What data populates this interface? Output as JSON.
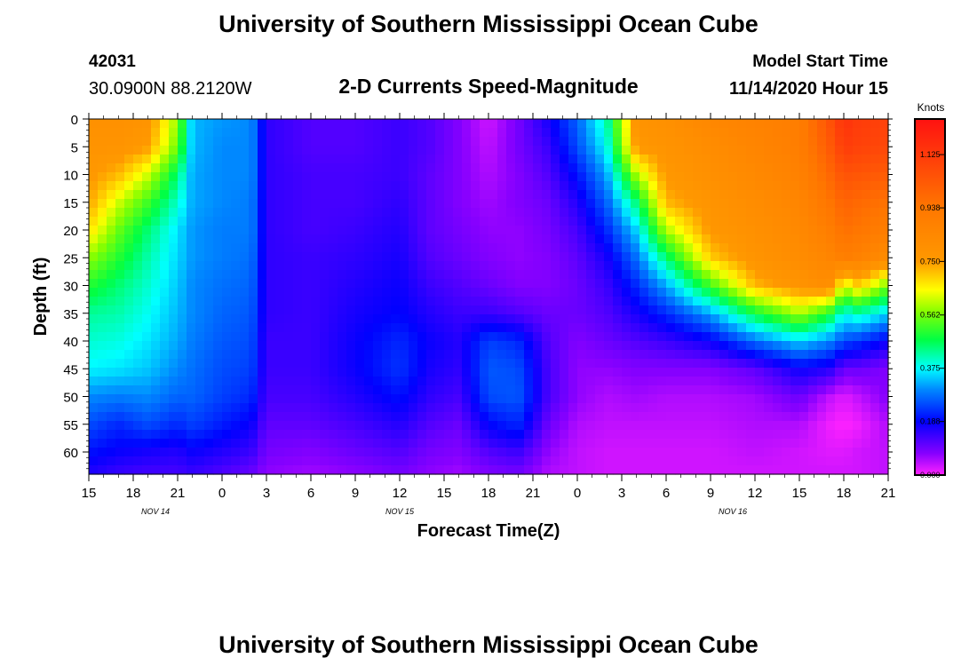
{
  "chart_data": {
    "type": "heatmap",
    "title": "University of Southern Mississippi Ocean Cube",
    "footer_title": "University of Southern Mississippi Ocean Cube",
    "subtitle": "2-D Currents Speed-Magnitude",
    "station_id": "42031",
    "station_position": "30.0900N 88.2120W",
    "model_start_label": "Model Start Time",
    "model_start_value": "11/14/2020 Hour 15",
    "xlabel": "Forecast Time(Z)",
    "ylabel": "Depth (ft)",
    "x_range_hours": [
      0,
      54
    ],
    "y_range_ft": [
      0,
      64
    ],
    "x_ticks": [
      {
        "hour": 0,
        "label": "15"
      },
      {
        "hour": 3,
        "label": "18"
      },
      {
        "hour": 6,
        "label": "21"
      },
      {
        "hour": 9,
        "label": "0"
      },
      {
        "hour": 12,
        "label": "3"
      },
      {
        "hour": 15,
        "label": "6"
      },
      {
        "hour": 18,
        "label": "9"
      },
      {
        "hour": 21,
        "label": "12"
      },
      {
        "hour": 24,
        "label": "15"
      },
      {
        "hour": 27,
        "label": "18"
      },
      {
        "hour": 30,
        "label": "21"
      },
      {
        "hour": 33,
        "label": "0"
      },
      {
        "hour": 36,
        "label": "3"
      },
      {
        "hour": 39,
        "label": "6"
      },
      {
        "hour": 42,
        "label": "9"
      },
      {
        "hour": 45,
        "label": "12"
      },
      {
        "hour": 48,
        "label": "15"
      },
      {
        "hour": 51,
        "label": "18"
      },
      {
        "hour": 54,
        "label": "21"
      }
    ],
    "date_labels": [
      {
        "hour": 4.5,
        "label": "NOV 14"
      },
      {
        "hour": 21,
        "label": "NOV 15"
      },
      {
        "hour": 43.5,
        "label": "NOV 16"
      }
    ],
    "y_ticks": [
      "0",
      "5",
      "10",
      "15",
      "20",
      "25",
      "30",
      "35",
      "40",
      "45",
      "50",
      "55",
      "60"
    ],
    "y_tick_values": [
      0,
      5,
      10,
      15,
      20,
      25,
      30,
      35,
      40,
      45,
      50,
      55,
      60
    ],
    "colorbar": {
      "unit": "Knots",
      "min": 0.0,
      "max": 1.25,
      "ticks": [
        "1.125",
        "0.938",
        "0.750",
        "0.562",
        "0.375",
        "0.188",
        "0.000"
      ],
      "tick_values": [
        1.125,
        0.938,
        0.75,
        0.562,
        0.375,
        0.188,
        0.0
      ]
    },
    "depths_ft": [
      0,
      5,
      10,
      15,
      20,
      25,
      30,
      35,
      40,
      45,
      50,
      55,
      60,
      64
    ],
    "hours": [
      0,
      2,
      4,
      6,
      7,
      9,
      11,
      12,
      15,
      18,
      21,
      23,
      25,
      27,
      29,
      31,
      33,
      35,
      37,
      39,
      42,
      45,
      48,
      50,
      51,
      52,
      54
    ],
    "speed_knots": [
      [
        0.8,
        0.8,
        0.78,
        0.58,
        0.33,
        0.31,
        0.3,
        0.15,
        0.12,
        0.12,
        0.14,
        0.12,
        0.08,
        0.03,
        0.09,
        0.17,
        0.27,
        0.42,
        0.78,
        0.8,
        0.85,
        0.88,
        0.9,
        1.05,
        1.15,
        1.12,
        1.1
      ],
      [
        0.78,
        0.78,
        0.75,
        0.55,
        0.33,
        0.3,
        0.3,
        0.15,
        0.12,
        0.12,
        0.14,
        0.12,
        0.08,
        0.04,
        0.09,
        0.14,
        0.25,
        0.38,
        0.76,
        0.78,
        0.82,
        0.86,
        0.9,
        1.02,
        1.12,
        1.1,
        1.08
      ],
      [
        0.76,
        0.72,
        0.62,
        0.45,
        0.32,
        0.3,
        0.3,
        0.15,
        0.13,
        0.13,
        0.14,
        0.11,
        0.08,
        0.05,
        0.08,
        0.12,
        0.2,
        0.32,
        0.6,
        0.76,
        0.8,
        0.84,
        0.88,
        0.98,
        1.05,
        1.04,
        1.02
      ],
      [
        0.74,
        0.62,
        0.52,
        0.4,
        0.32,
        0.3,
        0.29,
        0.15,
        0.13,
        0.13,
        0.15,
        0.11,
        0.08,
        0.06,
        0.08,
        0.1,
        0.16,
        0.27,
        0.45,
        0.72,
        0.78,
        0.82,
        0.86,
        0.94,
        1.0,
        0.98,
        0.95
      ],
      [
        0.68,
        0.55,
        0.45,
        0.36,
        0.31,
        0.29,
        0.29,
        0.15,
        0.13,
        0.14,
        0.16,
        0.11,
        0.09,
        0.07,
        0.07,
        0.09,
        0.13,
        0.22,
        0.35,
        0.6,
        0.76,
        0.8,
        0.84,
        0.9,
        0.96,
        0.94,
        0.9
      ],
      [
        0.58,
        0.5,
        0.42,
        0.35,
        0.31,
        0.29,
        0.28,
        0.15,
        0.14,
        0.15,
        0.17,
        0.12,
        0.1,
        0.08,
        0.07,
        0.08,
        0.11,
        0.17,
        0.28,
        0.45,
        0.7,
        0.78,
        0.82,
        0.86,
        0.9,
        0.88,
        0.82
      ],
      [
        0.5,
        0.45,
        0.4,
        0.34,
        0.3,
        0.28,
        0.27,
        0.15,
        0.14,
        0.16,
        0.18,
        0.14,
        0.12,
        0.1,
        0.08,
        0.08,
        0.1,
        0.14,
        0.22,
        0.32,
        0.52,
        0.72,
        0.78,
        0.82,
        0.62,
        0.7,
        0.56
      ],
      [
        0.43,
        0.42,
        0.38,
        0.33,
        0.3,
        0.27,
        0.26,
        0.15,
        0.14,
        0.17,
        0.19,
        0.16,
        0.14,
        0.14,
        0.12,
        0.1,
        0.1,
        0.12,
        0.17,
        0.22,
        0.32,
        0.48,
        0.6,
        0.5,
        0.38,
        0.42,
        0.35
      ],
      [
        0.4,
        0.39,
        0.36,
        0.32,
        0.29,
        0.26,
        0.25,
        0.14,
        0.14,
        0.18,
        0.22,
        0.18,
        0.16,
        0.24,
        0.22,
        0.12,
        0.08,
        0.1,
        0.12,
        0.14,
        0.18,
        0.28,
        0.35,
        0.3,
        0.25,
        0.23,
        0.18
      ],
      [
        0.37,
        0.36,
        0.34,
        0.3,
        0.28,
        0.25,
        0.24,
        0.14,
        0.14,
        0.18,
        0.23,
        0.17,
        0.15,
        0.26,
        0.25,
        0.13,
        0.07,
        0.07,
        0.08,
        0.08,
        0.08,
        0.11,
        0.18,
        0.16,
        0.1,
        0.1,
        0.08
      ],
      [
        0.3,
        0.29,
        0.3,
        0.27,
        0.27,
        0.24,
        0.22,
        0.13,
        0.13,
        0.16,
        0.2,
        0.15,
        0.13,
        0.25,
        0.26,
        0.13,
        0.07,
        0.05,
        0.06,
        0.05,
        0.05,
        0.06,
        0.1,
        0.04,
        0.02,
        0.04,
        0.08
      ],
      [
        0.25,
        0.22,
        0.25,
        0.22,
        0.24,
        0.21,
        0.18,
        0.11,
        0.11,
        0.13,
        0.16,
        0.12,
        0.1,
        0.19,
        0.22,
        0.1,
        0.05,
        0.04,
        0.04,
        0.04,
        0.04,
        0.05,
        0.05,
        0.01,
        0.0,
        0.01,
        0.05
      ],
      [
        0.2,
        0.18,
        0.17,
        0.16,
        0.18,
        0.16,
        0.14,
        0.09,
        0.08,
        0.1,
        0.12,
        0.09,
        0.08,
        0.12,
        0.14,
        0.07,
        0.04,
        0.03,
        0.03,
        0.03,
        0.03,
        0.04,
        0.03,
        0.02,
        0.02,
        0.03,
        0.04
      ],
      [
        0.16,
        0.14,
        0.13,
        0.13,
        0.14,
        0.12,
        0.1,
        0.07,
        0.06,
        0.07,
        0.09,
        0.07,
        0.06,
        0.08,
        0.09,
        0.05,
        0.04,
        0.03,
        0.03,
        0.03,
        0.03,
        0.03,
        0.03,
        0.03,
        0.03,
        0.03,
        0.04
      ]
    ]
  }
}
